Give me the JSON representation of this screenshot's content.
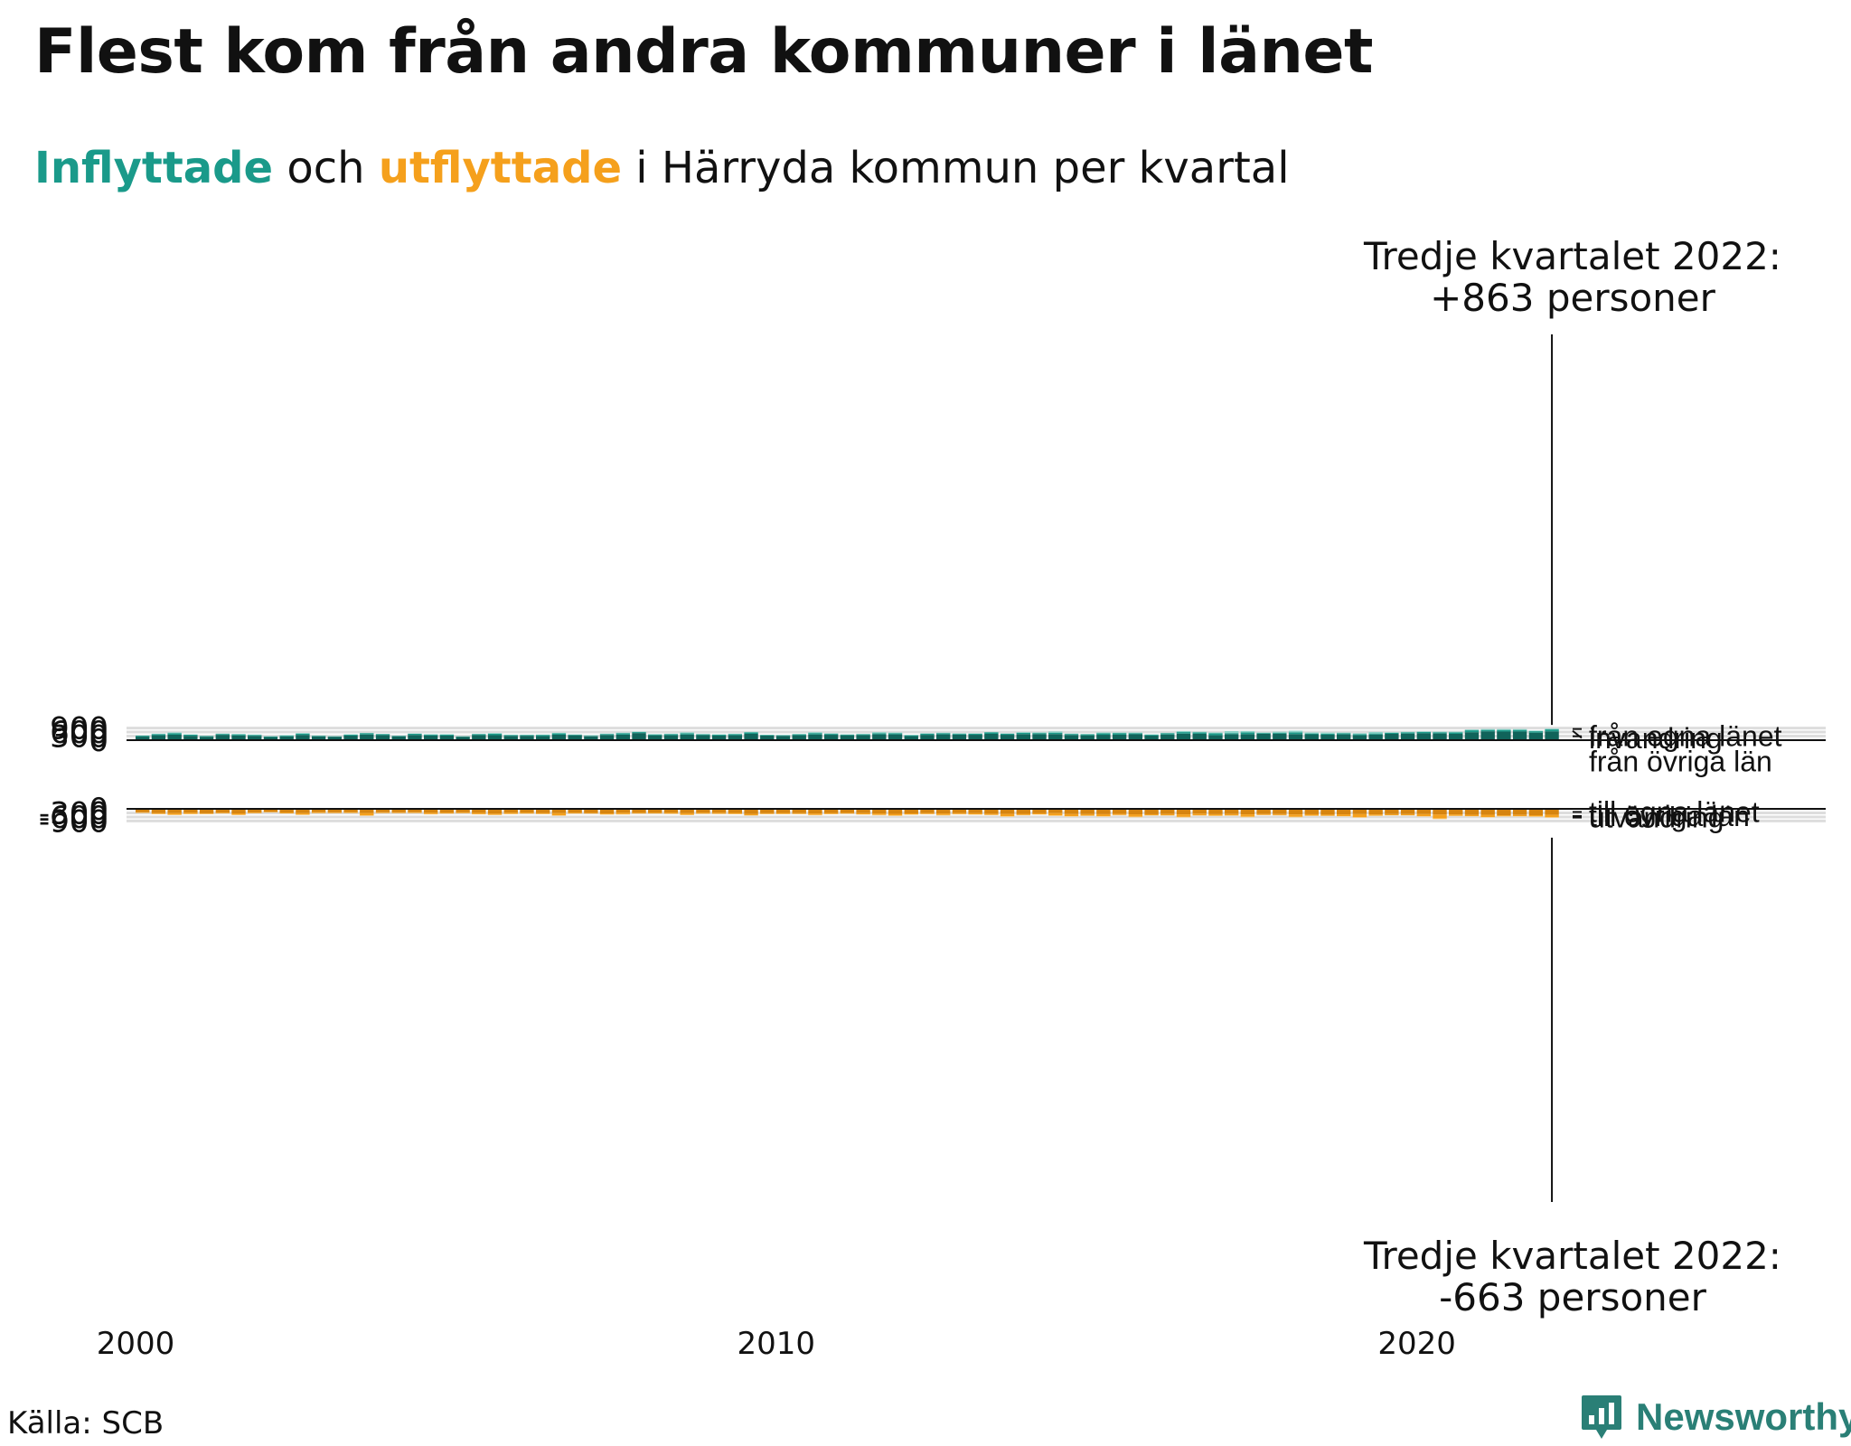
{
  "title": "Flest kom från andra kommuner i länet",
  "subtitle": {
    "word_in": "Inflyttade",
    "connector": "och",
    "word_out": "utflyttade",
    "rest": "i Härryda kommun per kvartal"
  },
  "source": "Källa: SCB",
  "brand": "Newsworthy",
  "colors": {
    "in_egna": "#10635a",
    "in_ovriga": "#1c9a89",
    "in_invandring": "#8bd3c8",
    "out_egna": "#d6840f",
    "out_ovriga": "#f5a01c",
    "out_utvandring": "#fbd38a",
    "grid": "#dddddd"
  },
  "chart_data": [
    {
      "type": "bar",
      "stacked": true,
      "panel": "inflyttade",
      "x_start": "2000 Q1",
      "x_end": "2022 Q3",
      "x_ticks": [
        "2000",
        "2010",
        "2020"
      ],
      "y_ticks": [
        "900",
        "600",
        "300",
        "0"
      ],
      "ylim": [
        0,
        950
      ],
      "grid": true,
      "series": [
        {
          "name": "från egna länet",
          "values": [
            265,
            365,
            405,
            325,
            255,
            395,
            350,
            320,
            230,
            275,
            390,
            280,
            255,
            335,
            420,
            375,
            285,
            385,
            345,
            340,
            250,
            375,
            370,
            320,
            325,
            300,
            405,
            360,
            295,
            385,
            410,
            525,
            360,
            365,
            420,
            375,
            335,
            365,
            470,
            335,
            320,
            365,
            425,
            400,
            360,
            375,
            430,
            430,
            300,
            395,
            430,
            405,
            400,
            470,
            400,
            450,
            445,
            455,
            385,
            360,
            400,
            405,
            440,
            345,
            420,
            485,
            475,
            365,
            450,
            445,
            470,
            480,
            450,
            435,
            405,
            430,
            365,
            420,
            470,
            490,
            510,
            495,
            470,
            590,
            655,
            640,
            645,
            555,
            650
          ]
        },
        {
          "name": "från övriga län",
          "values": [
            65,
            80,
            115,
            80,
            50,
            65,
            75,
            65,
            45,
            55,
            85,
            45,
            25,
            65,
            100,
            65,
            40,
            90,
            75,
            65,
            30,
            70,
            110,
            60,
            55,
            90,
            95,
            40,
            20,
            70,
            105,
            75,
            55,
            75,
            90,
            50,
            65,
            70,
            100,
            50,
            40,
            65,
            100,
            65,
            50,
            55,
            80,
            80,
            60,
            75,
            85,
            60,
            75,
            115,
            70,
            90,
            80,
            100,
            75,
            70,
            110,
            120,
            75,
            60,
            95,
            115,
            100,
            140,
            70,
            135,
            55,
            70,
            130,
            60,
            75,
            80,
            75,
            75,
            70,
            80,
            100,
            90,
            105,
            145,
            105,
            120,
            115,
            110,
            150
          ]
        },
        {
          "name": "invandring",
          "values": [
            20,
            35,
            55,
            25,
            10,
            30,
            45,
            35,
            20,
            40,
            60,
            25,
            25,
            35,
            25,
            30,
            15,
            20,
            25,
            40,
            20,
            30,
            50,
            30,
            30,
            30,
            50,
            30,
            60,
            30,
            40,
            30,
            45,
            40,
            70,
            50,
            35,
            45,
            45,
            20,
            30,
            35,
            65,
            40,
            30,
            45,
            85,
            55,
            35,
            40,
            40,
            40,
            30,
            25,
            30,
            55,
            50,
            90,
            30,
            35,
            60,
            40,
            50,
            30,
            35,
            75,
            50,
            65,
            150,
            95,
            40,
            80,
            125,
            75,
            85,
            55,
            70,
            115,
            45,
            50,
            40,
            45,
            55,
            60,
            70,
            70,
            65,
            45,
            60
          ]
        }
      ]
    },
    {
      "type": "bar",
      "stacked": true,
      "panel": "utflyttade",
      "y_ticks": [
        "0",
        "-300",
        "-600",
        "-900"
      ],
      "ylim": [
        -900,
        0
      ],
      "grid": true,
      "series": [
        {
          "name": "till egna länet",
          "values": [
            -255,
            -310,
            -320,
            -280,
            -330,
            -280,
            -335,
            -265,
            -225,
            -275,
            -320,
            -245,
            -260,
            -240,
            -310,
            -255,
            -260,
            -245,
            -290,
            -280,
            -260,
            -295,
            -355,
            -285,
            -280,
            -305,
            -320,
            -285,
            -295,
            -345,
            -290,
            -290,
            -290,
            -275,
            -325,
            -280,
            -285,
            -300,
            -375,
            -325,
            -305,
            -320,
            -345,
            -305,
            -295,
            -320,
            -340,
            -370,
            -335,
            -310,
            -340,
            -310,
            -325,
            -360,
            -380,
            -370,
            -330,
            -320,
            -385,
            -390,
            -395,
            -365,
            -405,
            -400,
            -380,
            -410,
            -355,
            -395,
            -380,
            -410,
            -380,
            -385,
            -420,
            -400,
            -430,
            -405,
            -390,
            -415,
            -390,
            -390,
            -390,
            -425,
            -410,
            -440,
            -440,
            -480,
            -450,
            -470,
            -445
          ]
        },
        {
          "name": "till övriga län",
          "values": [
            -40,
            -65,
            -115,
            -95,
            -40,
            -50,
            -105,
            -50,
            -35,
            -60,
            -110,
            -60,
            -45,
            -60,
            -185,
            -50,
            -45,
            -55,
            -100,
            -70,
            -60,
            -100,
            -85,
            -85,
            -75,
            -65,
            -170,
            -60,
            -60,
            -75,
            -105,
            -60,
            -55,
            -85,
            -115,
            -80,
            -80,
            -75,
            -105,
            -55,
            -70,
            -55,
            -110,
            -80,
            -60,
            -90,
            -110,
            -125,
            -85,
            -75,
            -120,
            -80,
            -95,
            -90,
            -170,
            -90,
            -85,
            -170,
            -160,
            -110,
            -150,
            -90,
            -180,
            -80,
            -100,
            -185,
            -125,
            -105,
            -110,
            -170,
            -75,
            -80,
            -170,
            -100,
            -75,
            -135,
            -235,
            -85,
            -80,
            -80,
            -160,
            -300,
            -105,
            -100,
            -165,
            -70,
            -95,
            -90,
            -180
          ]
        },
        {
          "name": "utvandring",
          "values": [
            -15,
            -20,
            -20,
            -20,
            -20,
            -20,
            -20,
            -20,
            -10,
            -15,
            -25,
            -15,
            -15,
            -15,
            -25,
            -15,
            -15,
            -15,
            -25,
            -20,
            -15,
            -20,
            -20,
            -20,
            -20,
            -20,
            -30,
            -20,
            -15,
            -20,
            -30,
            -20,
            -15,
            -20,
            -25,
            -20,
            -20,
            -20,
            -30,
            -20,
            -25,
            -20,
            -25,
            -20,
            -25,
            -25,
            -35,
            -35,
            -25,
            -25,
            -35,
            -25,
            -20,
            -25,
            -45,
            -25,
            -20,
            -45,
            -40,
            -25,
            -45,
            -30,
            -40,
            -25,
            -30,
            -45,
            -30,
            -30,
            -25,
            -45,
            -20,
            -25,
            -40,
            -25,
            -25,
            -30,
            -35,
            -25,
            -20,
            -25,
            -30,
            -40,
            -25,
            -25,
            -35,
            -30,
            -30,
            -35,
            -40
          ]
        }
      ]
    }
  ],
  "annotations": {
    "top_line1": "Tredje kvartalet 2022:",
    "top_line2": "+863 personer",
    "bottom_line1": "Tredje kvartalet 2022:",
    "bottom_line2": "-663 personer"
  }
}
